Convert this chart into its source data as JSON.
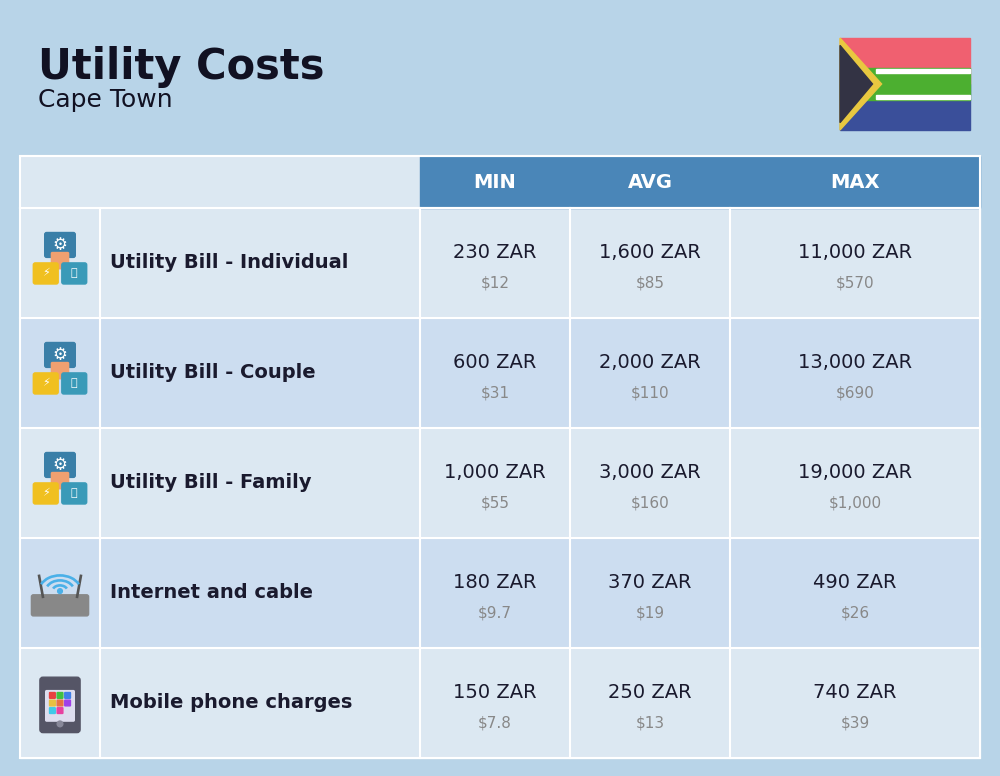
{
  "title": "Utility Costs",
  "subtitle": "Cape Town",
  "background_color": "#b8d4e8",
  "header_color": "#4a86b8",
  "row_color_odd": "#dce8f2",
  "row_color_even": "#ccddf0",
  "header_text_color": "#ffffff",
  "cell_text_color": "#1a1a2e",
  "usd_text_color": "#888888",
  "columns": [
    "MIN",
    "AVG",
    "MAX"
  ],
  "rows": [
    {
      "label": "Utility Bill - Individual",
      "min_zar": "230 ZAR",
      "min_usd": "$12",
      "avg_zar": "1,600 ZAR",
      "avg_usd": "$85",
      "max_zar": "11,000 ZAR",
      "max_usd": "$570"
    },
    {
      "label": "Utility Bill - Couple",
      "min_zar": "600 ZAR",
      "min_usd": "$31",
      "avg_zar": "2,000 ZAR",
      "avg_usd": "$110",
      "max_zar": "13,000 ZAR",
      "max_usd": "$690"
    },
    {
      "label": "Utility Bill - Family",
      "min_zar": "1,000 ZAR",
      "min_usd": "$55",
      "avg_zar": "3,000 ZAR",
      "avg_usd": "$160",
      "max_zar": "19,000 ZAR",
      "max_usd": "$1,000"
    },
    {
      "label": "Internet and cable",
      "min_zar": "180 ZAR",
      "min_usd": "$9.7",
      "avg_zar": "370 ZAR",
      "avg_usd": "$19",
      "max_zar": "490 ZAR",
      "max_usd": "$26"
    },
    {
      "label": "Mobile phone charges",
      "min_zar": "150 ZAR",
      "min_usd": "$7.8",
      "avg_zar": "250 ZAR",
      "avg_usd": "$13",
      "max_zar": "740 ZAR",
      "max_usd": "$39"
    }
  ],
  "flag": {
    "red": "#f06070",
    "green": "#4caf30",
    "blue": "#3a4f9a",
    "black": "#333344",
    "gold": "#e8c840",
    "white": "#ffffff"
  },
  "title_fontsize": 30,
  "subtitle_fontsize": 18,
  "header_fontsize": 14,
  "label_fontsize": 14,
  "zar_fontsize": 14,
  "usd_fontsize": 11
}
